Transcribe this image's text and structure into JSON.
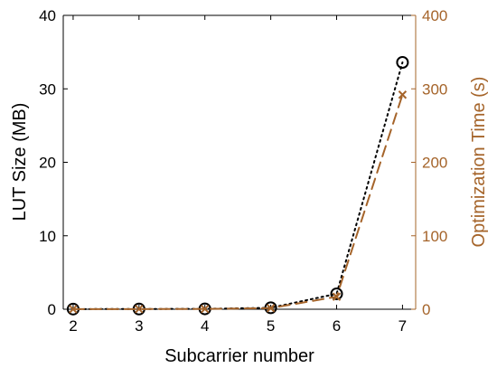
{
  "chart_data": {
    "type": "line",
    "xlabel": "Subcarrier number",
    "ylabel_left": "LUT Size (MB)",
    "ylabel_right": "Optimization Time (s)",
    "x": [
      2,
      3,
      4,
      5,
      6,
      7
    ],
    "xlim": [
      1.85,
      7.2
    ],
    "ylim_left": [
      0,
      40
    ],
    "ylim_right": [
      0,
      400
    ],
    "xticks": [
      2,
      3,
      4,
      5,
      6,
      7
    ],
    "yticks_left": [
      0,
      10,
      20,
      30,
      40
    ],
    "yticks_right": [
      0,
      100,
      200,
      300,
      400
    ],
    "grid": false,
    "series": [
      {
        "axis": "left",
        "values": [
          0.02,
          0.03,
          0.05,
          0.2,
          2.1,
          33.6
        ],
        "marker": "circle",
        "line": "dotted",
        "color": "#000000"
      },
      {
        "axis": "right",
        "values": [
          0.1,
          0.2,
          0.4,
          1.5,
          17,
          292
        ],
        "marker": "x",
        "line": "dashed",
        "color": "#a5642a"
      }
    ],
    "colors": {
      "left_axis": "#000000",
      "right_axis": "#a5642a"
    }
  }
}
